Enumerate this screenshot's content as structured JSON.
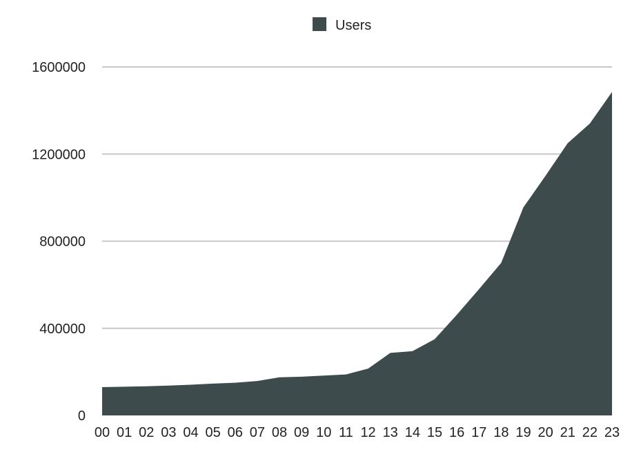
{
  "chart_data": {
    "type": "area",
    "title": "",
    "xlabel": "",
    "ylabel": "",
    "categories": [
      "00",
      "01",
      "02",
      "03",
      "04",
      "05",
      "06",
      "07",
      "08",
      "09",
      "10",
      "11",
      "12",
      "13",
      "14",
      "15",
      "16",
      "17",
      "18",
      "19",
      "20",
      "21",
      "22",
      "23"
    ],
    "series": [
      {
        "name": "Users",
        "color": "#3d4b4d",
        "values": [
          130000,
          132000,
          134000,
          137000,
          141000,
          146000,
          150000,
          158000,
          175000,
          178000,
          183000,
          188000,
          215000,
          287000,
          295000,
          350000,
          462000,
          580000,
          700000,
          955000,
          1100000,
          1250000,
          1340000,
          1485000
        ]
      }
    ],
    "ylim": [
      0,
      1600000
    ],
    "yticks": [
      0,
      400000,
      800000,
      1200000,
      1600000
    ],
    "ytick_labels": [
      "0",
      "400000",
      "800000",
      "1200000",
      "1600000"
    ],
    "grid": "horizontal",
    "grid_color": "#c8c8c8",
    "legend": {
      "position": "top-center",
      "items": [
        {
          "label": "Users",
          "color": "#3d4b4d"
        }
      ]
    }
  }
}
